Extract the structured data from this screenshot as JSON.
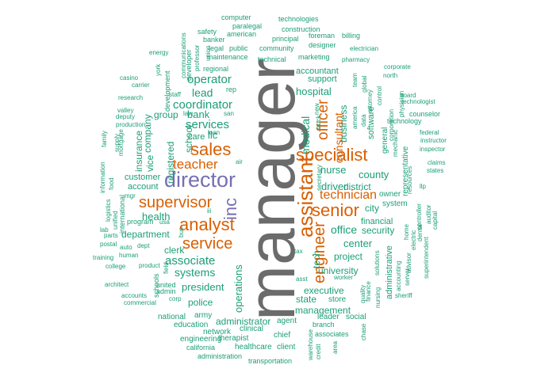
{
  "colors": {
    "gray": "#6b6b6b",
    "orange": "#d95f02",
    "purple": "#7570b3",
    "teal": "#1b9e77"
  },
  "words": [
    {
      "text": "manager",
      "color": "gray"
    },
    {
      "text": "director",
      "color": "purple"
    },
    {
      "text": "inc",
      "color": "purple"
    },
    {
      "text": "sales",
      "color": "orange"
    },
    {
      "text": "analyst",
      "color": "orange"
    },
    {
      "text": "supervisor",
      "color": "orange"
    },
    {
      "text": "service",
      "color": "orange"
    },
    {
      "text": "specialist",
      "color": "orange"
    },
    {
      "text": "assistant",
      "color": "orange"
    },
    {
      "text": "senior",
      "color": "orange"
    },
    {
      "text": "engineer",
      "color": "orange"
    },
    {
      "text": "officer",
      "color": "orange"
    },
    {
      "text": "teacher",
      "color": "orange"
    },
    {
      "text": "technician",
      "color": "orange"
    },
    {
      "text": "consultant",
      "color": "orange"
    },
    {
      "text": "coordinator",
      "color": "teal"
    },
    {
      "text": "operator",
      "color": "teal"
    },
    {
      "text": "services",
      "color": "teal"
    },
    {
      "text": "associate",
      "color": "teal"
    },
    {
      "text": "systems",
      "color": "teal"
    },
    {
      "text": "president",
      "color": "teal"
    },
    {
      "text": "police",
      "color": "teal"
    },
    {
      "text": "health",
      "color": "teal"
    },
    {
      "text": "department",
      "color": "teal"
    },
    {
      "text": "clerk",
      "color": "teal"
    },
    {
      "text": "lead",
      "color": "teal"
    },
    {
      "text": "bank",
      "color": "teal"
    },
    {
      "text": "llc",
      "color": "teal"
    },
    {
      "text": "care",
      "color": "teal"
    },
    {
      "text": "school",
      "color": "teal"
    },
    {
      "text": "group",
      "color": "teal"
    },
    {
      "text": "registered",
      "color": "teal"
    },
    {
      "text": "company",
      "color": "teal"
    },
    {
      "text": "vice",
      "color": "teal"
    },
    {
      "text": "insurance",
      "color": "teal"
    },
    {
      "text": "customer",
      "color": "teal"
    },
    {
      "text": "account",
      "color": "teal"
    },
    {
      "text": "operations",
      "color": "teal"
    },
    {
      "text": "administrator",
      "color": "teal"
    },
    {
      "text": "hospital",
      "color": "teal"
    },
    {
      "text": "medical",
      "color": "teal"
    },
    {
      "text": "nurse",
      "color": "teal"
    },
    {
      "text": "driver",
      "color": "teal"
    },
    {
      "text": "district",
      "color": "teal"
    },
    {
      "text": "county",
      "color": "teal"
    },
    {
      "text": "city",
      "color": "teal"
    },
    {
      "text": "security",
      "color": "teal"
    },
    {
      "text": "office",
      "color": "teal"
    },
    {
      "text": "center",
      "color": "teal"
    },
    {
      "text": "project",
      "color": "teal"
    },
    {
      "text": "university",
      "color": "teal"
    },
    {
      "text": "executive",
      "color": "teal"
    },
    {
      "text": "state",
      "color": "teal"
    },
    {
      "text": "management",
      "color": "teal"
    },
    {
      "text": "store",
      "color": "teal"
    },
    {
      "text": "tech",
      "color": "teal"
    },
    {
      "text": "business",
      "color": "teal"
    },
    {
      "text": "accountant",
      "color": "teal"
    },
    {
      "text": "support",
      "color": "teal"
    },
    {
      "text": "financial",
      "color": "teal"
    },
    {
      "text": "software",
      "color": "teal"
    },
    {
      "text": "general",
      "color": "teal"
    },
    {
      "text": "administrative",
      "color": "teal"
    },
    {
      "text": "owner",
      "color": "teal"
    },
    {
      "text": "system",
      "color": "teal"
    },
    {
      "text": "representative",
      "color": "teal"
    },
    {
      "text": "national",
      "color": "teal"
    },
    {
      "text": "education",
      "color": "teal"
    },
    {
      "text": "engineering",
      "color": "teal"
    },
    {
      "text": "network",
      "color": "teal"
    },
    {
      "text": "army",
      "color": "teal"
    },
    {
      "text": "clinical",
      "color": "teal"
    },
    {
      "text": "therapist",
      "color": "teal"
    },
    {
      "text": "chief",
      "color": "teal"
    },
    {
      "text": "healthcare",
      "color": "teal"
    },
    {
      "text": "client",
      "color": "teal"
    },
    {
      "text": "california",
      "color": "teal"
    },
    {
      "text": "administration",
      "color": "teal"
    },
    {
      "text": "transportation",
      "color": "teal"
    },
    {
      "text": "agent",
      "color": "teal"
    },
    {
      "text": "leader",
      "color": "teal"
    },
    {
      "text": "social",
      "color": "teal"
    },
    {
      "text": "branch",
      "color": "teal"
    },
    {
      "text": "associates",
      "color": "teal"
    },
    {
      "text": "computer",
      "color": "teal"
    },
    {
      "text": "technologies",
      "color": "teal"
    },
    {
      "text": "paralegal",
      "color": "teal"
    },
    {
      "text": "construction",
      "color": "teal"
    },
    {
      "text": "american",
      "color": "teal"
    },
    {
      "text": "principal",
      "color": "teal"
    },
    {
      "text": "foreman",
      "color": "teal"
    },
    {
      "text": "billing",
      "color": "teal"
    },
    {
      "text": "safety",
      "color": "teal"
    },
    {
      "text": "banker",
      "color": "teal"
    },
    {
      "text": "legal",
      "color": "teal"
    },
    {
      "text": "public",
      "color": "teal"
    },
    {
      "text": "community",
      "color": "teal"
    },
    {
      "text": "designer",
      "color": "teal"
    },
    {
      "text": "electrician",
      "color": "teal"
    },
    {
      "text": "energy",
      "color": "teal"
    },
    {
      "text": "maintenance",
      "color": "teal"
    },
    {
      "text": "technical",
      "color": "teal"
    },
    {
      "text": "marketing",
      "color": "teal"
    },
    {
      "text": "pharmacy",
      "color": "teal"
    },
    {
      "text": "regional",
      "color": "teal"
    },
    {
      "text": "corporate",
      "color": "teal"
    },
    {
      "text": "north",
      "color": "teal"
    },
    {
      "text": "board",
      "color": "teal"
    },
    {
      "text": "technologist",
      "color": "teal"
    },
    {
      "text": "counselor",
      "color": "teal"
    },
    {
      "text": "technology",
      "color": "teal"
    },
    {
      "text": "federal",
      "color": "teal"
    },
    {
      "text": "instructor",
      "color": "teal"
    },
    {
      "text": "inspector",
      "color": "teal"
    },
    {
      "text": "claims",
      "color": "teal"
    },
    {
      "text": "states",
      "color": "teal"
    },
    {
      "text": "llp",
      "color": "teal"
    },
    {
      "text": "casino",
      "color": "teal"
    },
    {
      "text": "research",
      "color": "teal"
    },
    {
      "text": "carrier",
      "color": "teal"
    },
    {
      "text": "staff",
      "color": "teal"
    },
    {
      "text": "law",
      "color": "teal"
    },
    {
      "text": "valley",
      "color": "teal"
    },
    {
      "text": "deputy",
      "color": "teal"
    },
    {
      "text": "production",
      "color": "teal"
    },
    {
      "text": "mgr",
      "color": "teal"
    },
    {
      "text": "international",
      "color": "teal"
    },
    {
      "text": "program",
      "color": "teal"
    },
    {
      "text": "usa",
      "color": "teal"
    },
    {
      "text": "lab",
      "color": "teal"
    },
    {
      "text": "parts",
      "color": "teal"
    },
    {
      "text": "postal",
      "color": "teal"
    },
    {
      "text": "auto",
      "color": "teal"
    },
    {
      "text": "dept",
      "color": "teal"
    },
    {
      "text": "training",
      "color": "teal"
    },
    {
      "text": "human",
      "color": "teal"
    },
    {
      "text": "college",
      "color": "teal"
    },
    {
      "text": "product",
      "color": "teal"
    },
    {
      "text": "architect",
      "color": "teal"
    },
    {
      "text": "schools",
      "color": "teal"
    },
    {
      "text": "united",
      "color": "teal"
    },
    {
      "text": "admin",
      "color": "teal"
    },
    {
      "text": "accounts",
      "color": "teal"
    },
    {
      "text": "commercial",
      "color": "teal"
    },
    {
      "text": "corp",
      "color": "teal"
    },
    {
      "text": "field",
      "color": "teal"
    },
    {
      "text": "bus",
      "color": "teal"
    },
    {
      "text": "tax",
      "color": "teal"
    },
    {
      "text": "asst",
      "color": "teal"
    },
    {
      "text": "worker",
      "color": "teal"
    },
    {
      "text": "solutions",
      "color": "teal"
    },
    {
      "text": "quality",
      "color": "teal"
    },
    {
      "text": "finance",
      "color": "teal"
    },
    {
      "text": "nursing",
      "color": "teal"
    },
    {
      "text": "sheriff",
      "color": "teal"
    },
    {
      "text": "accounting",
      "color": "teal"
    },
    {
      "text": "advisor",
      "color": "teal"
    },
    {
      "text": "server",
      "color": "teal"
    },
    {
      "text": "home",
      "color": "teal"
    },
    {
      "text": "electric",
      "color": "teal"
    },
    {
      "text": "dental",
      "color": "teal"
    },
    {
      "text": "controller",
      "color": "teal"
    },
    {
      "text": "auditor",
      "color": "teal"
    },
    {
      "text": "capital",
      "color": "teal"
    },
    {
      "text": "superintendent",
      "color": "teal"
    },
    {
      "text": "resources",
      "color": "teal"
    },
    {
      "text": "mechanic",
      "color": "teal"
    },
    {
      "text": "physician",
      "color": "teal"
    },
    {
      "text": "corporation",
      "color": "teal"
    },
    {
      "text": "control",
      "color": "teal"
    },
    {
      "text": "attorney",
      "color": "teal"
    },
    {
      "text": "global",
      "color": "teal"
    },
    {
      "text": "team",
      "color": "teal"
    },
    {
      "text": "data",
      "color": "teal"
    },
    {
      "text": "america",
      "color": "teal"
    },
    {
      "text": "new",
      "color": "teal"
    },
    {
      "text": "truck",
      "color": "teal"
    },
    {
      "text": "secretary",
      "color": "teal"
    },
    {
      "text": "warehouse",
      "color": "teal"
    },
    {
      "text": "credit",
      "color": "teal"
    },
    {
      "text": "area",
      "color": "teal"
    },
    {
      "text": "chase",
      "color": "teal"
    },
    {
      "text": "san",
      "color": "teal"
    },
    {
      "text": "loan",
      "color": "teal"
    },
    {
      "text": "air",
      "color": "teal"
    },
    {
      "text": "iii",
      "color": "teal"
    },
    {
      "text": "rep",
      "color": "teal"
    },
    {
      "text": "professor",
      "color": "teal"
    },
    {
      "text": "union",
      "color": "teal"
    },
    {
      "text": "developer",
      "color": "teal"
    },
    {
      "text": "communications",
      "color": "teal"
    },
    {
      "text": "development",
      "color": "teal"
    },
    {
      "text": "york",
      "color": "teal"
    },
    {
      "text": "family",
      "color": "teal"
    },
    {
      "text": "information",
      "color": "teal"
    },
    {
      "text": "supply",
      "color": "teal"
    },
    {
      "text": "mortgage",
      "color": "teal"
    },
    {
      "text": "food",
      "color": "teal"
    },
    {
      "text": "logistics",
      "color": "teal"
    },
    {
      "text": "unified",
      "color": "teal"
    }
  ]
}
